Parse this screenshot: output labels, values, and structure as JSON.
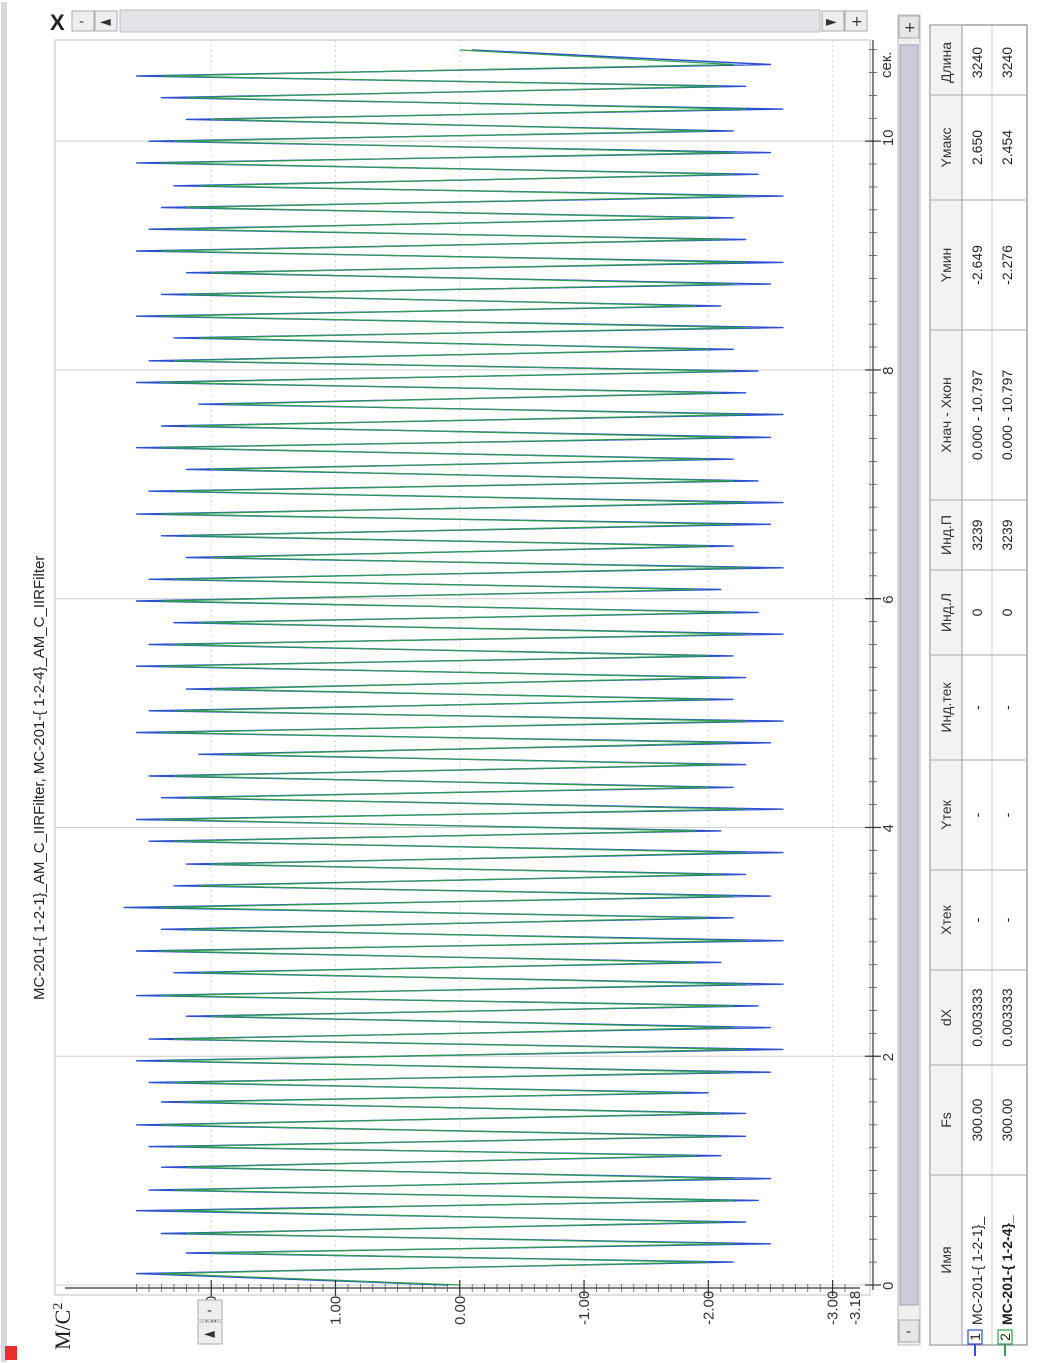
{
  "window": {
    "close_glyph": "X",
    "minus_glyph": "-",
    "plus_glyph": "+",
    "left_glyph": "◄",
    "right_glyph": "►"
  },
  "chart_data": {
    "type": "line",
    "title": "MC-201-{ 1-2-1}_AM_C_IIRFilter, MC-201-{ 1-2-4}_AM_C_IIRFilter",
    "ylabel_base": "M/C",
    "ylabel_sup": "2",
    "xlabel": "сек.",
    "xlim": [
      0,
      10.797
    ],
    "ylim": [
      -3.18,
      2.75
    ],
    "x_ticks": [
      {
        "v": 0,
        "label": "0"
      },
      {
        "v": 2,
        "label": "2"
      },
      {
        "v": 4,
        "label": "4"
      },
      {
        "v": 6,
        "label": "6"
      },
      {
        "v": 8,
        "label": "8"
      },
      {
        "v": 10,
        "label": "10"
      }
    ],
    "y_ticks": [
      {
        "v": 2.0,
        "label": "2.00"
      },
      {
        "v": 1.0,
        "label": "1.00"
      },
      {
        "v": 0.0,
        "label": "0.00"
      },
      {
        "v": -1.0,
        "label": "-1.00"
      },
      {
        "v": -2.0,
        "label": "-2.00"
      },
      {
        "v": -3.0,
        "label": "-3.00"
      }
    ],
    "y_min_label": "-3.18",
    "grid": true,
    "series": [
      {
        "name": "MC-201-{ 1-2-1}_",
        "color": "#2b4fcf",
        "x": [
          0.0,
          0.1,
          0.2,
          0.28,
          0.36,
          0.45,
          0.55,
          0.65,
          0.74,
          0.83,
          0.93,
          1.03,
          1.13,
          1.21,
          1.3,
          1.4,
          1.5,
          1.6,
          1.68,
          1.77,
          1.86,
          1.96,
          2.06,
          2.15,
          2.25,
          2.35,
          2.44,
          2.53,
          2.63,
          2.73,
          2.82,
          2.92,
          3.01,
          3.11,
          3.21,
          3.3,
          3.4,
          3.49,
          3.59,
          3.68,
          3.78,
          3.88,
          3.97,
          4.07,
          4.16,
          4.26,
          4.35,
          4.45,
          4.55,
          4.64,
          4.74,
          4.83,
          4.93,
          5.02,
          5.12,
          5.21,
          5.31,
          5.41,
          5.5,
          5.6,
          5.69,
          5.79,
          5.88,
          5.98,
          6.08,
          6.17,
          6.27,
          6.36,
          6.46,
          6.55,
          6.65,
          6.74,
          6.84,
          6.94,
          7.03,
          7.13,
          7.22,
          7.32,
          7.41,
          7.51,
          7.61,
          7.7,
          7.8,
          7.89,
          7.99,
          8.08,
          8.18,
          8.28,
          8.37,
          8.47,
          8.56,
          8.66,
          8.75,
          8.85,
          8.94,
          9.04,
          9.14,
          9.23,
          9.33,
          9.42,
          9.52,
          9.61,
          9.71,
          9.81,
          9.9,
          10.0,
          10.09,
          10.19,
          10.28,
          10.38,
          10.48,
          10.57,
          10.67,
          10.797
        ],
        "y": [
          0.1,
          2.6,
          -2.2,
          2.2,
          -2.5,
          2.4,
          -2.3,
          2.6,
          -2.4,
          2.5,
          -2.5,
          2.4,
          -2.1,
          2.5,
          -2.3,
          2.6,
          -2.3,
          2.4,
          -2.0,
          2.5,
          -2.5,
          2.6,
          -2.6,
          2.5,
          -2.5,
          2.2,
          -2.4,
          2.6,
          -2.6,
          2.3,
          -2.1,
          2.6,
          -2.6,
          2.4,
          -2.2,
          2.7,
          -2.5,
          2.3,
          -2.3,
          2.2,
          -2.6,
          2.5,
          -2.1,
          2.6,
          -2.6,
          2.4,
          -2.2,
          2.5,
          -2.3,
          2.1,
          -2.5,
          2.6,
          -2.6,
          2.5,
          -2.2,
          2.2,
          -2.3,
          2.6,
          -2.2,
          2.5,
          -2.6,
          2.3,
          -2.4,
          2.6,
          -2.1,
          2.5,
          -2.6,
          2.2,
          -2.2,
          2.4,
          -2.5,
          2.6,
          -2.6,
          2.5,
          -2.4,
          2.2,
          -2.2,
          2.6,
          -2.5,
          2.4,
          -2.6,
          2.1,
          -2.3,
          2.6,
          -2.4,
          2.5,
          -2.2,
          2.3,
          -2.6,
          2.6,
          -2.1,
          2.4,
          -2.5,
          2.2,
          -2.6,
          2.6,
          -2.3,
          2.5,
          -2.2,
          2.4,
          -2.6,
          2.3,
          -2.4,
          2.6,
          -2.5,
          2.5,
          -2.2,
          2.2,
          -2.6,
          2.4,
          -2.3,
          2.6,
          -2.5,
          -0.1
        ]
      },
      {
        "name": "MC-201-{ 1-2-4}_",
        "color": "#2f9e4f",
        "x": [
          0.0,
          0.1,
          0.2,
          0.28,
          0.36,
          0.45,
          0.55,
          0.65,
          0.74,
          0.83,
          0.93,
          1.03,
          1.13,
          1.21,
          1.3,
          1.4,
          1.5,
          1.6,
          1.68,
          1.77,
          1.86,
          1.96,
          2.06,
          2.15,
          2.25,
          2.35,
          2.44,
          2.53,
          2.63,
          2.73,
          2.82,
          2.92,
          3.01,
          3.11,
          3.21,
          3.3,
          3.4,
          3.49,
          3.59,
          3.68,
          3.78,
          3.88,
          3.97,
          4.07,
          4.16,
          4.26,
          4.35,
          4.45,
          4.55,
          4.64,
          4.74,
          4.83,
          4.93,
          5.02,
          5.12,
          5.21,
          5.31,
          5.41,
          5.5,
          5.6,
          5.69,
          5.79,
          5.88,
          5.98,
          6.08,
          6.17,
          6.27,
          6.36,
          6.46,
          6.55,
          6.65,
          6.74,
          6.84,
          6.94,
          7.03,
          7.13,
          7.22,
          7.32,
          7.41,
          7.51,
          7.61,
          7.7,
          7.8,
          7.89,
          7.99,
          8.08,
          8.18,
          8.28,
          8.37,
          8.47,
          8.56,
          8.66,
          8.75,
          8.85,
          8.94,
          9.04,
          9.14,
          9.23,
          9.33,
          9.42,
          9.52,
          9.61,
          9.71,
          9.81,
          9.9,
          10.0,
          10.09,
          10.19,
          10.28,
          10.38,
          10.48,
          10.57,
          10.67,
          10.797
        ],
        "y": [
          0.0,
          2.4,
          -2.0,
          2.0,
          -2.2,
          2.2,
          -2.1,
          2.3,
          -2.2,
          2.3,
          -2.2,
          2.2,
          -1.9,
          2.3,
          -2.1,
          2.4,
          -2.1,
          2.2,
          -1.8,
          2.3,
          -2.2,
          2.4,
          -2.3,
          2.3,
          -2.2,
          2.0,
          -2.2,
          2.4,
          -2.3,
          2.1,
          -1.9,
          2.4,
          -2.3,
          2.2,
          -2.0,
          2.4,
          -2.2,
          2.1,
          -2.1,
          2.0,
          -2.3,
          2.3,
          -1.9,
          2.4,
          -2.3,
          2.2,
          -2.0,
          2.3,
          -2.1,
          1.9,
          -2.2,
          2.4,
          -2.3,
          2.3,
          -2.0,
          2.0,
          -2.1,
          2.4,
          -2.0,
          2.3,
          -2.3,
          2.1,
          -2.2,
          2.4,
          -1.9,
          2.3,
          -2.3,
          2.0,
          -2.0,
          2.2,
          -2.2,
          2.4,
          -2.3,
          2.3,
          -2.2,
          2.0,
          -2.0,
          2.4,
          -2.2,
          2.2,
          -2.3,
          1.9,
          -2.1,
          2.4,
          -2.2,
          2.3,
          -2.0,
          2.1,
          -2.3,
          2.4,
          -1.9,
          2.2,
          -2.2,
          2.0,
          -2.3,
          2.4,
          -2.1,
          2.3,
          -2.0,
          2.2,
          -2.3,
          2.1,
          -2.2,
          2.4,
          -2.2,
          2.3,
          -2.0,
          2.0,
          -2.3,
          2.2,
          -2.1,
          2.4,
          -2.2,
          0.0
        ]
      }
    ]
  },
  "table": {
    "headers": [
      "Имя",
      "Fs",
      "dX",
      "Xтек",
      "Yтек",
      "Инд.тек",
      "Инд.Л",
      "Инд.П",
      "Xнач - Xкон",
      "Yмин",
      "Yмакс",
      "Длина"
    ],
    "rows": [
      {
        "num": "1",
        "cells": [
          "MC-201-{ 1-2-1}_",
          "300.00",
          "0.003333",
          "-",
          "-",
          "-",
          "0",
          "3239",
          "0.000 - 10.797",
          "-2.649",
          "2.650",
          "3240"
        ],
        "color": "#2b4fcf"
      },
      {
        "num": "2",
        "cells": [
          "MC-201-{ 1-2-4}_",
          "300.00",
          "0.003333",
          "-",
          "-",
          "-",
          "0",
          "3239",
          "0.000 - 10.797",
          "-2.276",
          "2.454",
          "3240"
        ],
        "color": "#2f9e4f"
      }
    ]
  }
}
